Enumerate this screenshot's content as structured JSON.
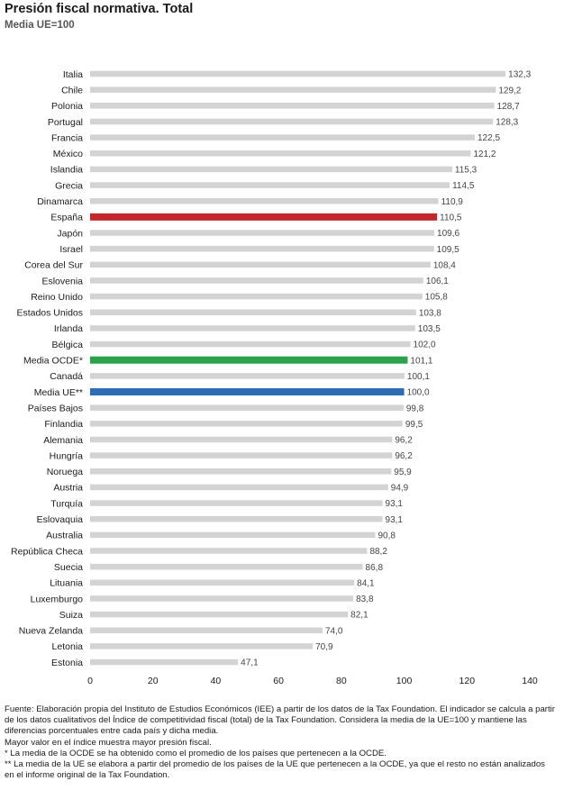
{
  "chart_data": {
    "type": "bar",
    "orientation": "horizontal",
    "title": "Presión fiscal normativa. Total",
    "subtitle": "Media UE=100",
    "xlim": [
      0,
      140
    ],
    "xticks": [
      0,
      20,
      40,
      60,
      80,
      100,
      120,
      140
    ],
    "grid": false,
    "categories": [
      "Italia",
      "Chile",
      "Polonia",
      "Portugal",
      "Francia",
      "México",
      "Islandia",
      "Grecia",
      "Dinamarca",
      "España",
      "Japón",
      "Israel",
      "Corea del Sur",
      "Eslovenia",
      "Reino Unido",
      "Estados Unidos",
      "Irlanda",
      "Bélgica",
      "Media OCDE*",
      "Canadá",
      "Media UE**",
      "Países Bajos",
      "Finlandia",
      "Alemania",
      "Hungría",
      "Noruega",
      "Austria",
      "Turquía",
      "Eslovaquia",
      "Australia",
      "República Checa",
      "Suecia",
      "Lituania",
      "Luxemburgo",
      "Suiza",
      "Nueva Zelanda",
      "Letonia",
      "Estonia"
    ],
    "values": [
      132.3,
      129.2,
      128.7,
      128.3,
      122.5,
      121.2,
      115.3,
      114.5,
      110.9,
      110.5,
      109.6,
      109.5,
      108.4,
      106.1,
      105.8,
      103.8,
      103.5,
      102.0,
      101.1,
      100.1,
      100.0,
      99.8,
      99.5,
      96.2,
      96.2,
      95.9,
      94.9,
      93.1,
      93.1,
      90.8,
      88.2,
      86.8,
      84.1,
      83.8,
      82.1,
      74.0,
      70.9,
      47.1
    ],
    "value_labels": [
      "132,3",
      "129,2",
      "128,7",
      "128,3",
      "122,5",
      "121,2",
      "115,3",
      "114,5",
      "110,9",
      "110,5",
      "109,6",
      "109,5",
      "108,4",
      "106,1",
      "105,8",
      "103,8",
      "103,5",
      "102,0",
      "101,1",
      "100,1",
      "100,0",
      "99,8",
      "99,5",
      "96,2",
      "96,2",
      "95,9",
      "94,9",
      "93,1",
      "93,1",
      "90,8",
      "88,2",
      "86,8",
      "84,1",
      "83,8",
      "82,1",
      "74,0",
      "70,9",
      "47,1"
    ],
    "colors": {
      "default": "#d3d3d3",
      "highlights": {
        "España": "#c0272d",
        "Media OCDE*": "#2aa14a",
        "Media UE**": "#2e6db4"
      }
    }
  },
  "footnotes": [
    "Fuente: Elaboración propia del Instituto de Estudios Económicos (IEE) a partir de los datos de la Tax Foundation. El indicador se calcula a partir de los datos cualitativos del Índice de competitividad fiscal (total) de la Tax Foundation. Considera la media de la UE=100 y mantiene las diferencias porcentuales entre cada país y dicha media.",
    "Mayor valor en el índice muestra mayor presión fiscal.",
    "* La media de la OCDE se ha obtenido como el promedio de los países que pertenecen a la OCDE.",
    "** La media de la UE se elabora a partir del promedio de los países de la UE que pertenecen a la OCDE, ya que el resto no están analizados en el informe original de la Tax Foundation."
  ]
}
